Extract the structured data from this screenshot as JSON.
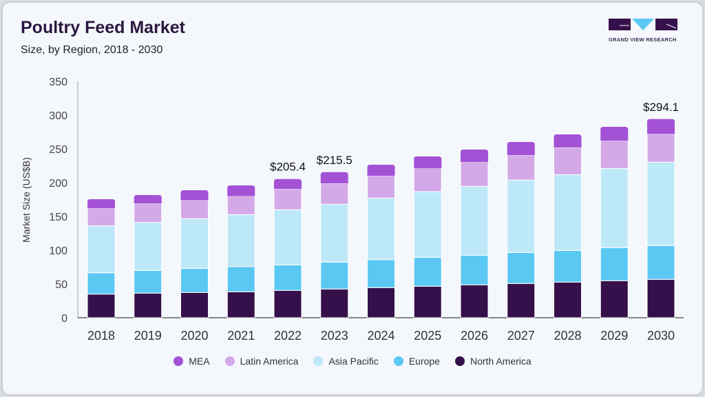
{
  "header": {
    "title": "Poultry Feed Market",
    "subtitle": "Size, by Region, 2018 - 2030",
    "logo_text": "GRAND VIEW RESEARCH"
  },
  "chart_data": {
    "type": "bar",
    "stacked": true,
    "title": "Poultry Feed Market",
    "subtitle": "Size, by Region, 2018 - 2030",
    "xlabel": "",
    "ylabel": "Market Size (US$B)",
    "ylim": [
      0,
      350
    ],
    "yticks": [
      0,
      50,
      100,
      150,
      200,
      250,
      300,
      350
    ],
    "categories": [
      "2018",
      "2019",
      "2020",
      "2021",
      "2022",
      "2023",
      "2024",
      "2025",
      "2026",
      "2027",
      "2028",
      "2029",
      "2030"
    ],
    "series": [
      {
        "name": "North America",
        "color": "#36104a",
        "values": [
          35,
          36.4,
          37.4,
          38.4,
          40.5,
          42.5,
          44.6,
          46.6,
          48.7,
          50.7,
          52.7,
          54.8,
          56.8
        ]
      },
      {
        "name": "Europe",
        "color": "#5bc8f3",
        "values": [
          31.6,
          33.7,
          35.7,
          37.4,
          37.7,
          39.8,
          41.4,
          42.9,
          43.8,
          45.9,
          47,
          49,
          50
        ]
      },
      {
        "name": "Asia Pacific",
        "color": "#bde8f8",
        "values": [
          69.4,
          71,
          73.5,
          76.9,
          81.7,
          85.7,
          91.2,
          97.2,
          102.1,
          107.2,
          112.2,
          117.3,
          123.5
        ]
      },
      {
        "name": "Latin America",
        "color": "#d4a9e8",
        "values": [
          26,
          28,
          27.2,
          27.3,
          30.6,
          31,
          32.7,
          34.4,
          35.7,
          36.7,
          40.1,
          40.9,
          41.8
        ]
      },
      {
        "name": "MEA",
        "color": "#a352d6",
        "values": [
          13.5,
          12.5,
          15,
          15.9,
          14.9,
          16.5,
          16.6,
          17.7,
          18.7,
          19.7,
          19.4,
          20.7,
          22
        ]
      }
    ],
    "annotations": [
      {
        "category": "2022",
        "text": "$205.4"
      },
      {
        "category": "2023",
        "text": "$215.5"
      },
      {
        "category": "2030",
        "text": "$294.1"
      }
    ],
    "legend": {
      "position": "bottom",
      "order": [
        "MEA",
        "Latin America",
        "Asia Pacific",
        "Europe",
        "North America"
      ]
    },
    "grid": false
  }
}
